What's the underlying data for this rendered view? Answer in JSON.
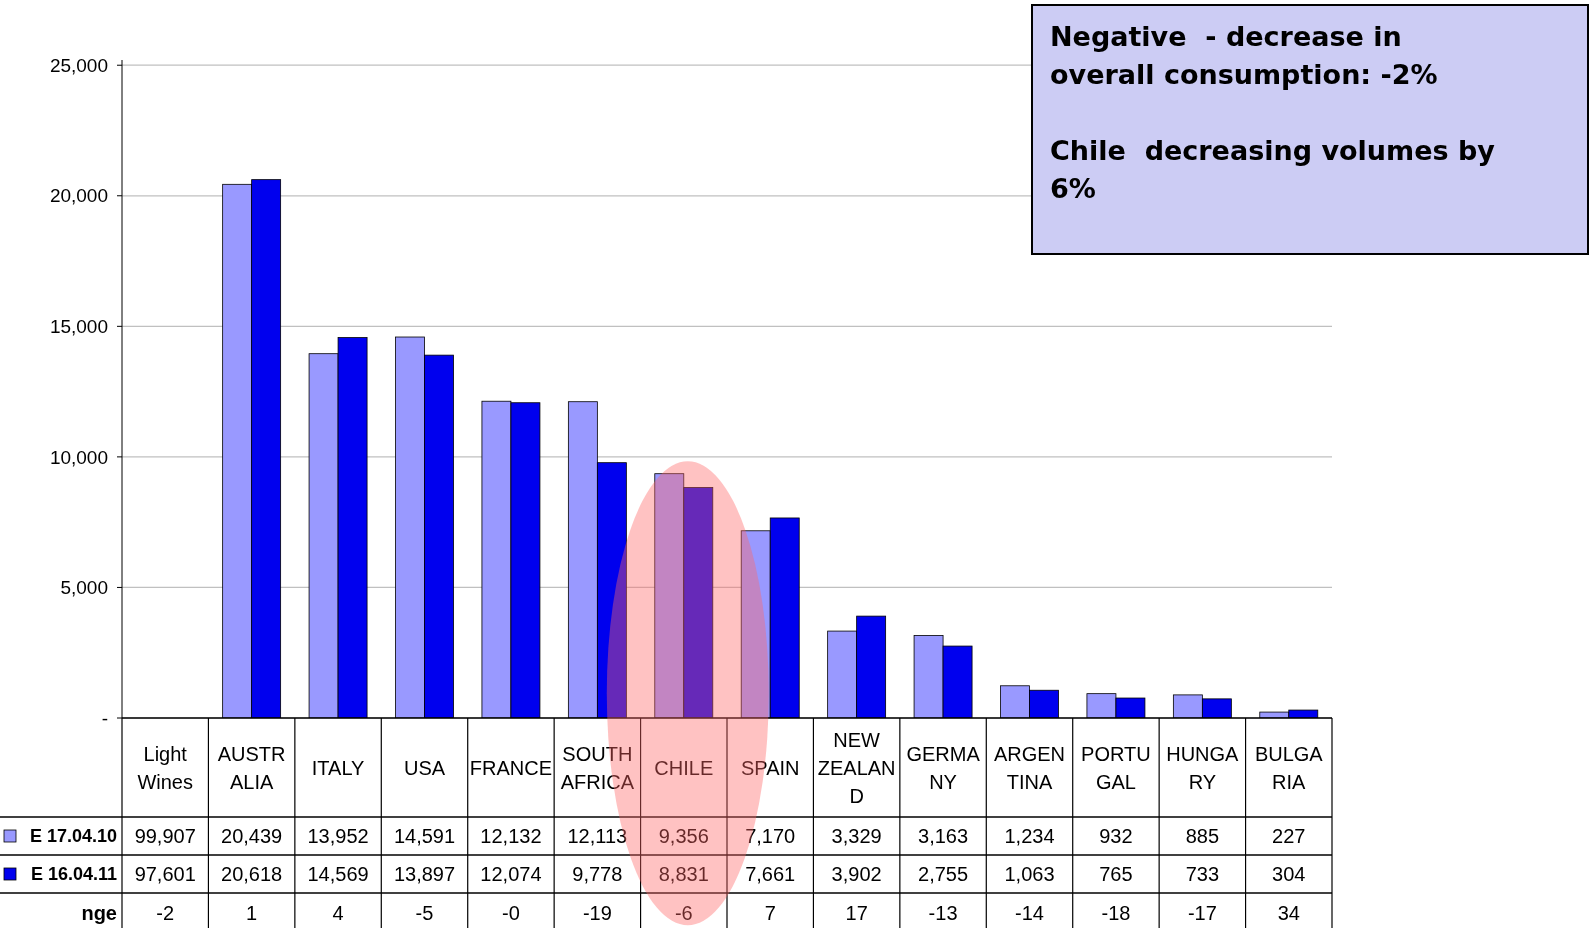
{
  "chart_data": {
    "type": "bar",
    "categories": [
      "Light\nWines",
      "AUSTR\nALIA",
      "ITALY",
      "USA",
      "FRANCE",
      "SOUTH\nAFRICA",
      "CHILE",
      "SPAIN",
      "NEW\nZEALAN\nD",
      "GERMA\nNY",
      "ARGEN\nTINA",
      "PORTU\nGAL",
      "HUNGA\nRY",
      "BULGA\nRIA"
    ],
    "series": [
      {
        "name": "E 17.04.10",
        "color": "#9999ff",
        "values": [
          null,
          20439,
          13952,
          14591,
          12132,
          12113,
          9356,
          7170,
          3329,
          3163,
          1234,
          932,
          885,
          227
        ],
        "value_labels": [
          "99,907",
          "20,439",
          "13,952",
          "14,591",
          "12,132",
          "12,113",
          "9,356",
          "7,170",
          "3,329",
          "3,163",
          "1,234",
          "932",
          "885",
          "227"
        ]
      },
      {
        "name": "E 16.04.11",
        "color": "#0000ee",
        "values": [
          null,
          20618,
          14569,
          13897,
          12074,
          9778,
          8831,
          7661,
          3902,
          2755,
          1063,
          765,
          733,
          304
        ],
        "value_labels": [
          "97,601",
          "20,618",
          "14,569",
          "13,897",
          "12,074",
          "9,778",
          "8,831",
          "7,661",
          "3,902",
          "2,755",
          "1,063",
          "765",
          "733",
          "304"
        ]
      }
    ],
    "ylim": [
      0,
      25200
    ],
    "yticks": [
      {
        "value": 0,
        "label": "-"
      },
      {
        "value": 5000,
        "label": "5,000"
      },
      {
        "value": 10000,
        "label": "10,000"
      },
      {
        "value": 15000,
        "label": "15,000"
      },
      {
        "value": 20000,
        "label": "20,000"
      },
      {
        "value": 25000,
        "label": "25,000"
      }
    ],
    "grid": "y",
    "legend": "bottom left",
    "annotations": [
      "Negative  - decrease in overall consumption: -2%",
      "Chile  decreasing volumes by 6%",
      "nge",
      "-2",
      "1",
      "4",
      "-5",
      "-0",
      "-19",
      "-6",
      "7",
      "17",
      "-13",
      "-14",
      "-18",
      "-17",
      "34"
    ]
  }
}
